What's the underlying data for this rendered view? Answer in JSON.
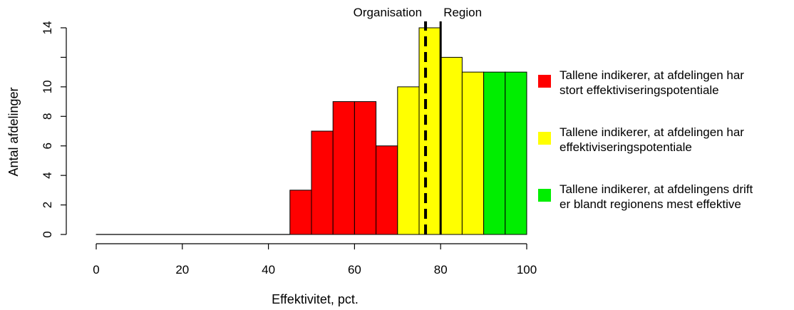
{
  "chart_data": {
    "type": "bar",
    "xlabel": "Effektivitet, pct.",
    "ylabel": "Antal afdelinger",
    "xlim": [
      0,
      100
    ],
    "ylim": [
      0,
      14
    ],
    "xticks": [
      0,
      20,
      40,
      60,
      80,
      100
    ],
    "yticks": [
      0,
      2,
      4,
      6,
      8,
      10,
      14
    ],
    "bins": [
      {
        "from": 0,
        "to": 45,
        "value": 0,
        "color": "#ffffff"
      },
      {
        "from": 45,
        "to": 50,
        "value": 3,
        "color": "#ff0000"
      },
      {
        "from": 50,
        "to": 55,
        "value": 7,
        "color": "#ff0000"
      },
      {
        "from": 55,
        "to": 60,
        "value": 9,
        "color": "#ff0000"
      },
      {
        "from": 60,
        "to": 65,
        "value": 9,
        "color": "#ff0000"
      },
      {
        "from": 65,
        "to": 70,
        "value": 6,
        "color": "#ff0000"
      },
      {
        "from": 70,
        "to": 75,
        "value": 10,
        "color": "#ffff00"
      },
      {
        "from": 75,
        "to": 80,
        "value": 14,
        "color": "#ffff00"
      },
      {
        "from": 80,
        "to": 85,
        "value": 12,
        "color": "#ffff00"
      },
      {
        "from": 85,
        "to": 90,
        "value": 11,
        "color": "#ffff00"
      },
      {
        "from": 90,
        "to": 95,
        "value": 11,
        "color": "#00ee00"
      },
      {
        "from": 95,
        "to": 100,
        "value": 11,
        "color": "#00ee00"
      }
    ],
    "reference_lines": [
      {
        "label": "Organisation",
        "x": 76.5,
        "style": "dashed"
      },
      {
        "label": "Region",
        "x": 80,
        "style": "solid"
      }
    ],
    "legend": {
      "placement": "right",
      "items": [
        {
          "color": "#ff0000",
          "label_line1": "Tallene indikerer, at afdelingen har",
          "label_line2": "stort effektiviseringspotentiale"
        },
        {
          "color": "#ffff00",
          "label_line1": "Tallene indikerer, at afdelingen har",
          "label_line2": "effektiviseringspotentiale"
        },
        {
          "color": "#00ee00",
          "label_line1": "Tallene indikerer, at afdelingens drift",
          "label_line2": "er blandt regionens mest effektive"
        }
      ]
    }
  }
}
